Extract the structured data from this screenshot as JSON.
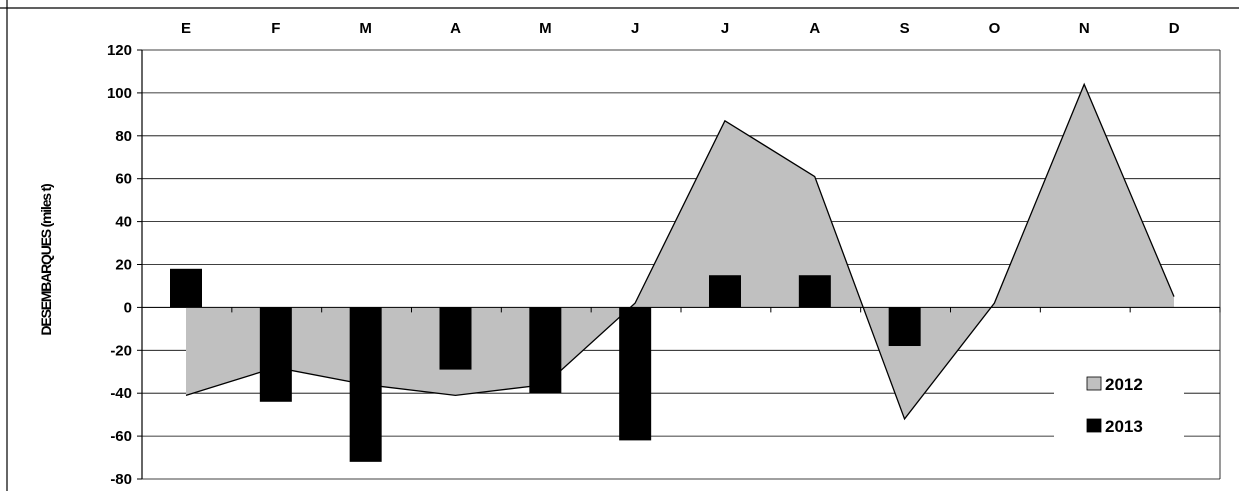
{
  "chart_data": {
    "type": "bar",
    "categories": [
      "E",
      "F",
      "M",
      "A",
      "M",
      "J",
      "J",
      "A",
      "S",
      "O",
      "N",
      "D"
    ],
    "ylabel": "DESEMBARQUES (miles t)",
    "ylim": [
      -80,
      120
    ],
    "yticks": [
      120,
      100,
      80,
      60,
      40,
      20,
      0,
      -20,
      -40,
      -60,
      -80
    ],
    "grid": true,
    "legend_position": "bottom-right",
    "series": [
      {
        "name": "2012",
        "chart_style": "area",
        "color": "#c0c0c0",
        "values": [
          -41,
          -28,
          -36,
          -41,
          -36,
          2,
          87,
          61,
          -52,
          2,
          104,
          5
        ]
      },
      {
        "name": "2013",
        "chart_style": "bar",
        "color": "#000000",
        "values": [
          18,
          -44,
          -72,
          -29,
          -40,
          -62,
          15,
          15,
          -18,
          null,
          null,
          null
        ]
      }
    ]
  }
}
